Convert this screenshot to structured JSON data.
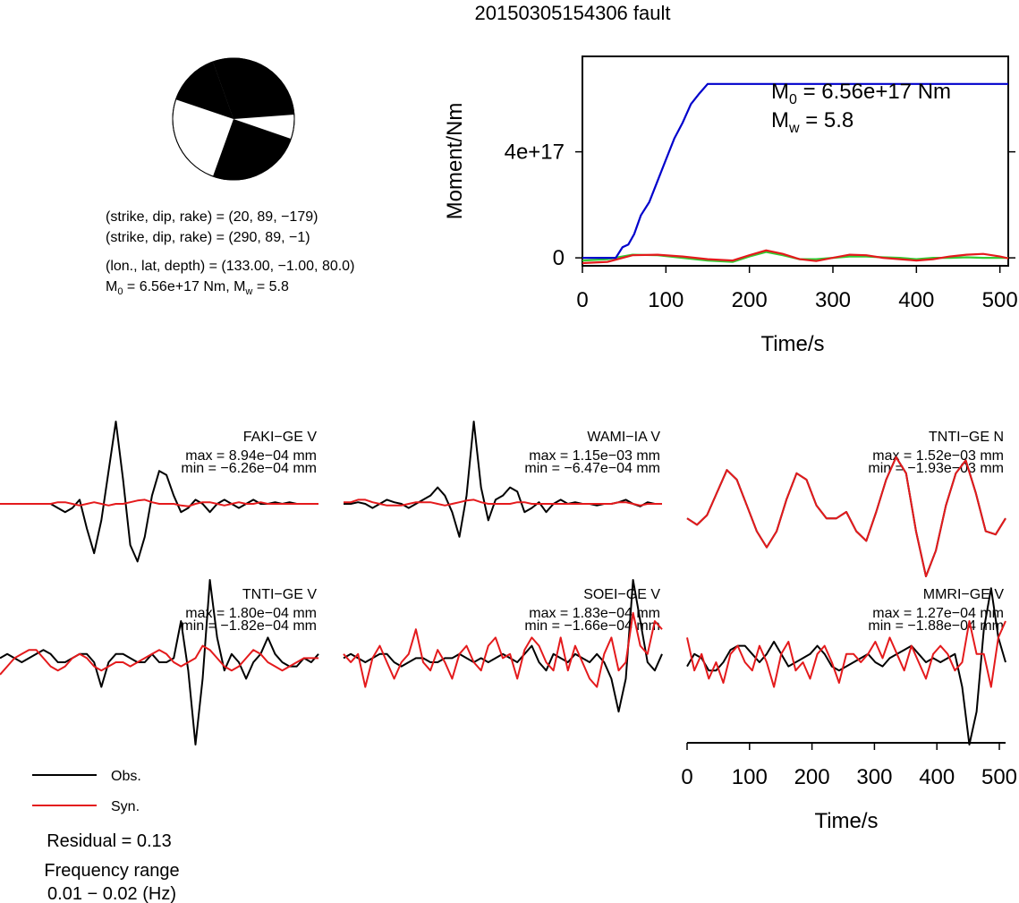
{
  "title": "20150305154306 fault",
  "mechanism": {
    "line1": "(strike, dip, rake) = (20, 89, −179)",
    "line2": "(strike, dip, rake) = (290, 89, −1)",
    "line3": "(lon., lat, depth) = (133.00, −1.00, 80.0)",
    "m0_prefix": "M",
    "m0_sub": "0",
    "m0_rest": " = 6.56e+17 Nm, M",
    "mw_sub": "w",
    "mw_rest": " = 5.8"
  },
  "moment_panel": {
    "m0_label": "M",
    "m0_sub": "0",
    "m0_value": " = 6.56e+17 Nm",
    "mw_label": "M",
    "mw_sub": "w",
    "mw_value": " = 5.8"
  },
  "traces_time_axis": {
    "xlabel": "Time/s",
    "xticks": [
      "0",
      "100",
      "200",
      "300",
      "400",
      "500"
    ]
  },
  "legend": {
    "obs": "Obs.",
    "syn": "Syn.",
    "obs_color": "#000000",
    "syn_color": "#e41a1c"
  },
  "residual": "Residual = 0.13",
  "freq_label": "Frequency range",
  "freq_value": "0.01 − 0.02 (Hz)",
  "chart_data": [
    {
      "type": "line",
      "xlabel": "Time/s",
      "ylabel": "Moment/Nm",
      "xlim": [
        0,
        510
      ],
      "ylim": [
        -3e+16,
        7.6e+17
      ],
      "xticks": [
        "0",
        "100",
        "200",
        "300",
        "400",
        "500"
      ],
      "yticks": [
        "0",
        "4e+17"
      ],
      "series": [
        {
          "color": "#0000cc",
          "x": [
            0,
            40,
            48,
            55,
            62,
            70,
            80,
            90,
            100,
            110,
            120,
            130,
            140,
            150,
            510
          ],
          "y": [
            0,
            0,
            4e+16,
            5e+16,
            9e+16,
            1.6e+17,
            2.1e+17,
            2.9e+17,
            3.7e+17,
            4.5e+17,
            5.1e+17,
            5.8e+17,
            6.2e+17,
            6.56e+17,
            6.56e+17
          ]
        },
        {
          "color": "#e41a1c",
          "x": [
            0,
            30,
            60,
            90,
            120,
            150,
            180,
            200,
            220,
            240,
            260,
            280,
            300,
            320,
            340,
            360,
            380,
            400,
            420,
            440,
            460,
            480,
            500,
            510
          ],
          "y": [
            -2e+16,
            -1.5e+16,
            1e+16,
            1.2e+16,
            5000000000000000.0,
            -5000000000000000.0,
            -1e+16,
            1e+16,
            2.8e+16,
            1.5e+16,
            -5000000000000000.0,
            -1.2e+16,
            0.0,
            1.2e+16,
            1e+16,
            0.0,
            -5000000000000000.0,
            -1e+16,
            -5000000000000000.0,
            5000000000000000.0,
            1.2e+16,
            1.5e+16,
            5000000000000000.0,
            -2000000000000000.0
          ]
        },
        {
          "color": "#33cc33",
          "x": [
            0,
            30,
            60,
            90,
            120,
            150,
            180,
            200,
            220,
            240,
            260,
            280,
            300,
            320,
            340,
            360,
            380,
            400,
            420,
            440,
            460,
            480,
            500,
            510
          ],
          "y": [
            -1e+16,
            -5000000000000000.0,
            1.2e+16,
            1e+16,
            0.0,
            -1e+16,
            -1.5e+16,
            5000000000000000.0,
            2.2e+16,
            1e+16,
            -5000000000000000.0,
            -5000000000000000.0,
            0.0,
            5000000000000000.0,
            5000000000000000.0,
            2000000000000000.0,
            0.0,
            -5000000000000000.0,
            0.0,
            0.0,
            2000000000000000.0,
            0.0,
            0.0,
            0.0
          ]
        }
      ]
    },
    {
      "type": "line",
      "xlabel": "Time/s",
      "xlim": [
        0,
        510
      ],
      "panels": [
        {
          "station": "FAKI−GE V",
          "max": "max = 8.94e−04 mm",
          "min": "min = −6.26e−04 mm",
          "obs": [
            0,
            0,
            0,
            0,
            0,
            0,
            0,
            0,
            -0.05,
            -0.1,
            -0.05,
            0.05,
            -0.3,
            -0.6,
            -0.2,
            0.4,
            1.0,
            0.3,
            -0.5,
            -0.7,
            -0.4,
            0.1,
            0.4,
            0.35,
            0.1,
            -0.1,
            -0.05,
            0.05,
            0,
            -0.1,
            0,
            0.05,
            0,
            -0.05,
            0,
            0.05,
            0,
            0,
            0.02,
            0,
            0.02,
            0,
            0,
            0,
            0
          ],
          "syn": [
            0,
            0,
            0,
            0,
            0,
            0,
            0,
            0,
            0.02,
            0.02,
            0,
            -0.02,
            0,
            0.02,
            0,
            -0.02,
            0,
            0,
            0.02,
            0.04,
            0.05,
            0.02,
            0,
            0,
            0,
            -0.02,
            -0.03,
            0,
            0.02,
            0.02,
            0,
            -0.02,
            0,
            0.02,
            0,
            0,
            0.02,
            0,
            0,
            0,
            0,
            0,
            0,
            0,
            0
          ]
        },
        {
          "station": "WAMI−IA V",
          "max": "max = 1.15e−03 mm",
          "min": "min = −6.47e−04 mm",
          "obs": [
            0,
            0,
            0.02,
            0,
            -0.05,
            0,
            0.05,
            0.02,
            0,
            -0.05,
            0,
            0.05,
            0.1,
            0.2,
            0.1,
            -0.1,
            -0.4,
            0.1,
            1.0,
            0.2,
            -0.2,
            0.05,
            0.1,
            0.2,
            0.15,
            -0.1,
            -0.05,
            0.02,
            -0.1,
            0,
            0.05,
            0,
            0.02,
            0,
            0,
            -0.02,
            0,
            0,
            0.02,
            0.05,
            0,
            -0.03,
            0.02,
            0,
            0
          ],
          "syn": [
            0.02,
            0.02,
            0.05,
            0.05,
            0.02,
            0,
            -0.02,
            -0.02,
            -0.02,
            0,
            0.02,
            0.02,
            0.02,
            0,
            -0.02,
            0,
            0.02,
            0.04,
            0.05,
            0.02,
            0,
            0,
            0,
            0,
            0.02,
            0.02,
            0,
            0,
            0,
            0,
            0,
            0,
            0,
            0,
            0,
            0,
            0,
            0,
            0.02,
            0.02,
            0,
            -0.02,
            0,
            0,
            0
          ]
        },
        {
          "station": "TNTI−GE N",
          "max": "max = 1.52e−03 mm",
          "min": "min = −1.93e−03 mm",
          "obs": [
            -0.1,
            -0.2,
            -0.05,
            0.3,
            0.65,
            0.5,
            0.1,
            -0.3,
            -0.55,
            -0.3,
            0.2,
            0.6,
            0.5,
            0.1,
            -0.1,
            -0.1,
            0,
            -0.3,
            -0.45,
            0,
            0.5,
            0.85,
            0.6,
            -0.3,
            -1.0,
            -0.6,
            0.1,
            0.6,
            0.8,
            0.3,
            -0.3,
            -0.35,
            -0.1
          ],
          "syn": [
            -0.1,
            -0.2,
            -0.05,
            0.3,
            0.65,
            0.5,
            0.1,
            -0.3,
            -0.55,
            -0.3,
            0.2,
            0.6,
            0.5,
            0.1,
            -0.1,
            -0.1,
            0,
            -0.3,
            -0.45,
            0,
            0.5,
            0.85,
            0.6,
            -0.3,
            -1.0,
            -0.6,
            0.1,
            0.6,
            0.8,
            0.3,
            -0.3,
            -0.35,
            -0.1
          ]
        },
        {
          "station": "TNTI−GE V",
          "max": "max = 1.80e−04 mm",
          "min": "min = −1.82e−04 mm",
          "obs": [
            0.05,
            0.1,
            0.05,
            0,
            0.05,
            0.1,
            0.15,
            0.1,
            0,
            0,
            0.05,
            0.1,
            0.1,
            0,
            -0.3,
            0,
            0.1,
            0.1,
            0.05,
            0,
            0,
            0.1,
            0,
            0,
            0.05,
            0.5,
            -0.1,
            -1.0,
            -0.2,
            1.0,
            0.3,
            -0.1,
            0.1,
            0,
            -0.2,
            0,
            0.1,
            0.3,
            0.1,
            0,
            -0.05,
            -0.05,
            0.05,
            0,
            0.1
          ],
          "syn": [
            -0.15,
            -0.05,
            0.05,
            0.1,
            0.15,
            0.15,
            0.05,
            -0.05,
            -0.1,
            -0.05,
            0.05,
            0.1,
            0.05,
            -0.05,
            -0.1,
            -0.05,
            0,
            0,
            -0.05,
            0,
            0.05,
            0.1,
            0.15,
            0.1,
            0,
            -0.05,
            0,
            0.05,
            0.2,
            0.15,
            0.05,
            -0.05,
            -0.1,
            -0.05,
            0.05,
            0.15,
            0.1,
            0,
            -0.05,
            -0.1,
            -0.05,
            0,
            0.05,
            0.05,
            0.05
          ]
        },
        {
          "station": "SOEI−GE V",
          "max": "max = 1.83e−04 mm",
          "min": "min = −1.66e−04 mm",
          "obs": [
            0.05,
            0.1,
            0.05,
            0,
            0.05,
            0.1,
            0.1,
            0,
            -0.05,
            0,
            0.05,
            0.05,
            0,
            0,
            0.05,
            0.05,
            0.1,
            0.05,
            0,
            0.05,
            0,
            0.05,
            0.1,
            0.05,
            0,
            0.1,
            0.2,
            0,
            -0.1,
            0.1,
            0.05,
            0,
            0.1,
            0.05,
            0,
            0.1,
            0,
            -0.2,
            -0.6,
            -0.2,
            1.0,
            0.5,
            0,
            -0.1,
            0.1
          ],
          "syn": [
            0.1,
            0,
            0.1,
            -0.3,
            0.05,
            0.2,
            0.0,
            -0.2,
            0,
            0.1,
            0.4,
            0,
            -0.1,
            0.15,
            0,
            -0.2,
            0.1,
            0.2,
            0.0,
            -0.1,
            0.2,
            0.3,
            0.05,
            0.1,
            -0.2,
            0.15,
            0.3,
            0.2,
            0.0,
            -0.1,
            0.3,
            -0.1,
            0.2,
            0,
            -0.2,
            -0.3,
            0.1,
            0.3,
            -0.1,
            0,
            0.6,
            0.2,
            0.1,
            0.5,
            0.4
          ]
        },
        {
          "station": "MMRI−GE V",
          "max": "max = 1.27e−04 mm",
          "min": "min = −1.88e−04 mm",
          "obs": [
            -0.05,
            0.1,
            0.05,
            -0.1,
            -0.1,
            0,
            0.15,
            0.2,
            0.2,
            0.1,
            0,
            0.1,
            0.25,
            0.1,
            -0.05,
            0,
            0.05,
            0.1,
            0.2,
            0.1,
            -0.05,
            -0.1,
            -0.05,
            0,
            0.05,
            0.1,
            0,
            -0.05,
            0.05,
            0.1,
            0.15,
            0.2,
            0.1,
            0,
            0.05,
            0,
            0.05,
            0.1,
            -0.3,
            -1.0,
            -0.6,
            0.4,
            0.9,
            0.3,
            0.0
          ],
          "syn": [
            0.3,
            -0.1,
            0.1,
            -0.2,
            0,
            -0.25,
            0.1,
            0.2,
            0,
            -0.1,
            0.2,
            0.0,
            -0.3,
            0.1,
            0.25,
            -0.1,
            0,
            -0.2,
            0.1,
            0.2,
            0,
            -0.25,
            0.1,
            0.1,
            0,
            0.1,
            0.25,
            0.05,
            0.3,
            0.1,
            -0.1,
            0.2,
            0,
            -0.2,
            0.1,
            0.2,
            0.1,
            -0.1,
            0,
            0.5,
            0.1,
            0.1,
            -0.3,
            0.3,
            0.5
          ]
        }
      ]
    }
  ]
}
